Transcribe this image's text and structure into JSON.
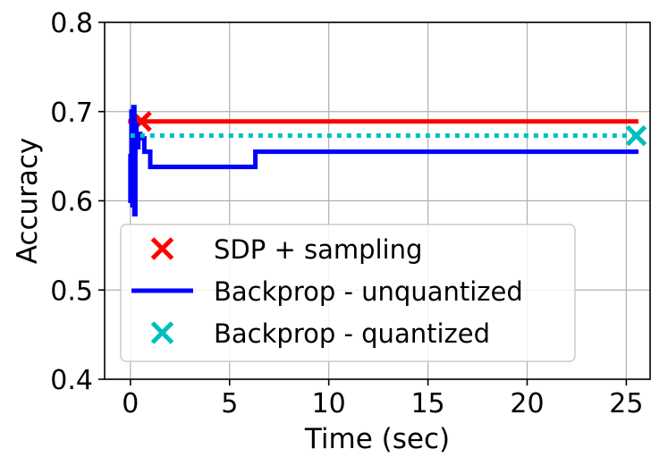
{
  "chart_data": {
    "type": "line",
    "xlabel": "Time (sec)",
    "ylabel": "Accuracy",
    "xlim": [
      -1.3,
      26.2
    ],
    "ylim": [
      0.4,
      0.8
    ],
    "x_ticks": [
      0,
      5,
      10,
      15,
      20,
      25
    ],
    "y_ticks": [
      0.4,
      0.5,
      0.6,
      0.7,
      0.8
    ],
    "x_tick_labels": [
      "0",
      "5",
      "10",
      "15",
      "20",
      "25"
    ],
    "y_tick_labels": [
      "0.4",
      "0.5",
      "0.6",
      "0.7",
      "0.8"
    ],
    "grid": true,
    "legend_position": "lower-left",
    "series": [
      {
        "name": "SDP + sampling",
        "style": "solid",
        "color": "#ff0000",
        "marker": "x",
        "x": [
          0.0,
          25.5
        ],
        "y": [
          0.689,
          0.689
        ],
        "marker_points": [
          {
            "x": 0.55,
            "y": 0.689
          }
        ]
      },
      {
        "name": "Backprop - unquantized",
        "style": "solid",
        "color": "#0000ff",
        "marker": "none",
        "x": [
          0.0,
          0.0,
          0.05,
          0.05,
          0.1,
          0.1,
          0.15,
          0.15,
          0.2,
          0.2,
          0.25,
          0.25,
          0.3,
          0.3,
          0.4,
          0.4,
          0.5,
          0.5,
          0.7,
          0.7,
          1.0,
          1.0,
          6.3,
          6.3,
          25.5
        ],
        "y": [
          0.6,
          0.65,
          0.65,
          0.7,
          0.7,
          0.595,
          0.595,
          0.705,
          0.705,
          0.585,
          0.585,
          0.685,
          0.685,
          0.66,
          0.66,
          0.675,
          0.675,
          0.67,
          0.67,
          0.655,
          0.655,
          0.638,
          0.638,
          0.655,
          0.655
        ]
      },
      {
        "name": "Backprop - quantized",
        "style": "dotted",
        "color": "#00bfbf",
        "marker": "x",
        "x": [
          0.0,
          25.5
        ],
        "y": [
          0.673,
          0.673
        ],
        "marker_points": [
          {
            "x": 25.5,
            "y": 0.673
          }
        ]
      }
    ]
  }
}
